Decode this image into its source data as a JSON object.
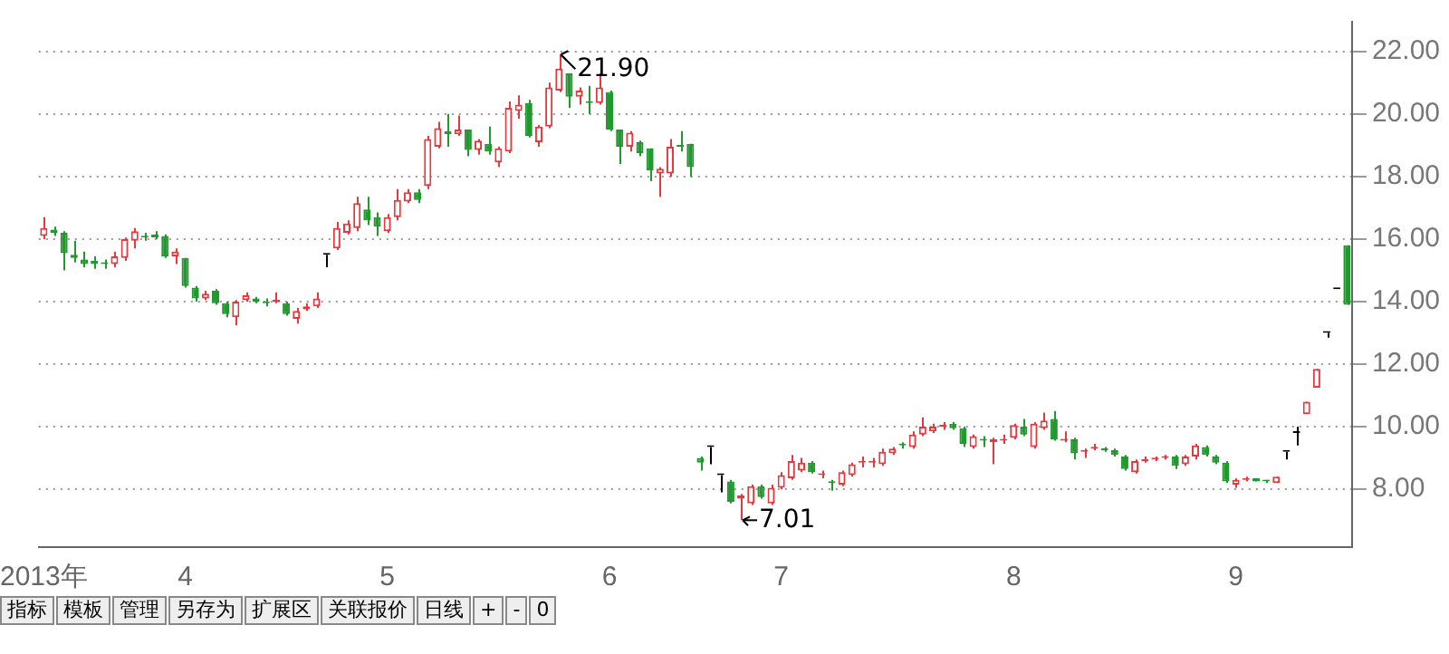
{
  "chart_data": {
    "type": "candlestick",
    "categories": [
      "2013年",
      null,
      null,
      null,
      null,
      null,
      null,
      null,
      null,
      null,
      null,
      null,
      null,
      null,
      "4",
      null,
      null,
      null,
      null,
      null,
      null,
      null,
      null,
      null,
      null,
      null,
      null,
      null,
      null,
      null,
      null,
      null,
      null,
      null,
      "5",
      null,
      null,
      null,
      null,
      null,
      null,
      null,
      null,
      null,
      null,
      null,
      null,
      null,
      null,
      null,
      null,
      null,
      null,
      null,
      null,
      null,
      "6",
      null,
      null,
      null,
      null,
      null,
      null,
      null,
      null,
      null,
      null,
      null,
      null,
      null,
      null,
      null,
      null,
      "7",
      null,
      null,
      null,
      null,
      null,
      null,
      null,
      null,
      null,
      null,
      null,
      null,
      null,
      null,
      null,
      null,
      null,
      null,
      null,
      null,
      null,
      null,
      "8",
      null,
      null,
      null,
      null,
      null,
      null,
      null,
      null,
      null,
      null,
      null,
      null,
      null,
      null,
      null,
      null,
      null,
      null,
      null,
      null,
      null,
      "9",
      null,
      null,
      null,
      null,
      null,
      null,
      null,
      null,
      null,
      null,
      null
    ],
    "ohlc": [
      [
        16.1,
        16.7,
        16.0,
        16.35
      ],
      [
        16.3,
        16.4,
        16.1,
        16.2
      ],
      [
        16.2,
        16.25,
        15.0,
        15.55
      ],
      [
        15.5,
        15.95,
        15.25,
        15.4
      ],
      [
        15.35,
        15.6,
        15.1,
        15.2
      ],
      [
        15.3,
        15.45,
        15.05,
        15.2
      ],
      [
        15.25,
        15.35,
        15.05,
        15.2
      ],
      [
        15.2,
        15.6,
        15.1,
        15.45
      ],
      [
        15.4,
        16.05,
        15.3,
        16.0
      ],
      [
        15.95,
        16.35,
        15.7,
        16.25
      ],
      [
        16.1,
        16.2,
        15.95,
        16.05
      ],
      [
        16.15,
        16.25,
        16.0,
        16.05
      ],
      [
        16.1,
        16.15,
        15.4,
        15.45
      ],
      [
        15.45,
        15.7,
        15.2,
        15.6
      ],
      [
        15.4,
        15.4,
        14.45,
        14.5
      ],
      [
        14.45,
        14.5,
        14.0,
        14.1
      ],
      [
        14.1,
        14.35,
        14.05,
        14.25
      ],
      [
        14.35,
        14.4,
        13.9,
        13.95
      ],
      [
        13.95,
        14.0,
        13.5,
        13.6
      ],
      [
        13.5,
        14.05,
        13.25,
        14.0
      ],
      [
        14.05,
        14.3,
        14.0,
        14.2
      ],
      [
        14.1,
        14.15,
        13.95,
        14.0
      ],
      [
        14.0,
        14.1,
        13.85,
        13.95
      ],
      [
        14.0,
        14.3,
        13.95,
        14.05
      ],
      [
        13.95,
        14.0,
        13.55,
        13.6
      ],
      [
        13.45,
        13.8,
        13.3,
        13.7
      ],
      [
        13.75,
        13.95,
        13.7,
        13.85
      ],
      [
        13.85,
        14.3,
        13.8,
        14.1
      ],
      [
        15.5,
        15.5,
        15.1,
        15.5
      ],
      [
        15.7,
        16.55,
        15.65,
        16.35
      ],
      [
        16.2,
        16.6,
        16.15,
        16.5
      ],
      [
        16.35,
        17.35,
        16.25,
        17.15
      ],
      [
        16.95,
        17.35,
        16.45,
        16.6
      ],
      [
        16.7,
        16.85,
        16.1,
        16.4
      ],
      [
        16.25,
        16.8,
        16.2,
        16.7
      ],
      [
        16.7,
        17.6,
        16.6,
        17.25
      ],
      [
        17.2,
        17.6,
        17.15,
        17.5
      ],
      [
        17.5,
        17.6,
        17.15,
        17.25
      ],
      [
        17.7,
        19.3,
        17.6,
        19.2
      ],
      [
        18.95,
        19.75,
        18.9,
        19.55
      ],
      [
        19.45,
        20.0,
        18.95,
        19.35
      ],
      [
        19.35,
        19.95,
        19.3,
        19.5
      ],
      [
        19.5,
        19.5,
        18.65,
        18.85
      ],
      [
        18.85,
        19.2,
        18.7,
        19.15
      ],
      [
        19.05,
        19.6,
        18.7,
        18.8
      ],
      [
        18.45,
        18.95,
        18.3,
        18.9
      ],
      [
        18.8,
        20.4,
        18.75,
        20.2
      ],
      [
        20.1,
        20.6,
        19.85,
        20.3
      ],
      [
        20.35,
        20.45,
        19.25,
        19.3
      ],
      [
        19.1,
        19.65,
        18.95,
        19.6
      ],
      [
        19.6,
        21.0,
        19.55,
        20.85
      ],
      [
        20.75,
        21.9,
        20.7,
        21.45
      ],
      [
        21.3,
        21.3,
        20.2,
        20.55
      ],
      [
        20.55,
        20.85,
        20.3,
        20.75
      ],
      [
        20.4,
        20.9,
        20.0,
        20.35
      ],
      [
        20.35,
        21.3,
        20.3,
        20.85
      ],
      [
        20.7,
        20.75,
        19.45,
        19.5
      ],
      [
        19.5,
        19.5,
        18.4,
        18.95
      ],
      [
        18.95,
        19.45,
        18.8,
        19.4
      ],
      [
        19.1,
        19.15,
        18.65,
        18.75
      ],
      [
        18.9,
        18.9,
        17.85,
        18.2
      ],
      [
        18.1,
        18.3,
        17.35,
        18.25
      ],
      [
        18.1,
        19.2,
        18.0,
        18.95
      ],
      [
        19.0,
        19.45,
        18.8,
        18.95
      ],
      [
        19.05,
        19.05,
        18.0,
        18.3
      ],
      [
        9.0,
        9.05,
        8.6,
        8.85
      ],
      [
        9.35,
        9.35,
        8.8,
        9.35
      ],
      [
        8.45,
        8.45,
        7.9,
        8.45
      ],
      [
        8.25,
        8.3,
        7.55,
        7.6
      ],
      [
        7.7,
        7.85,
        7.01,
        7.8
      ],
      [
        7.55,
        8.15,
        7.5,
        8.1
      ],
      [
        8.1,
        8.15,
        7.7,
        7.75
      ],
      [
        7.55,
        8.15,
        7.5,
        8.05
      ],
      [
        8.05,
        8.55,
        8.0,
        8.45
      ],
      [
        8.35,
        9.1,
        8.3,
        8.9
      ],
      [
        8.6,
        9.0,
        8.55,
        8.85
      ],
      [
        8.85,
        8.9,
        8.5,
        8.55
      ],
      [
        8.45,
        8.6,
        8.35,
        8.5
      ],
      [
        8.25,
        8.3,
        7.95,
        8.2
      ],
      [
        8.15,
        8.6,
        8.1,
        8.55
      ],
      [
        8.45,
        8.85,
        8.4,
        8.8
      ],
      [
        8.85,
        9.05,
        8.7,
        8.9
      ],
      [
        8.85,
        9.0,
        8.7,
        8.9
      ],
      [
        8.8,
        9.3,
        8.75,
        9.2
      ],
      [
        9.15,
        9.35,
        9.1,
        9.3
      ],
      [
        9.45,
        9.5,
        9.3,
        9.4
      ],
      [
        9.35,
        9.85,
        9.3,
        9.75
      ],
      [
        9.75,
        10.3,
        9.7,
        10.0
      ],
      [
        9.85,
        10.1,
        9.8,
        10.0
      ],
      [
        10.0,
        10.15,
        9.9,
        10.05
      ],
      [
        10.1,
        10.15,
        9.9,
        9.95
      ],
      [
        9.95,
        10.0,
        9.35,
        9.45
      ],
      [
        9.35,
        9.75,
        9.3,
        9.7
      ],
      [
        9.6,
        9.7,
        9.35,
        9.55
      ],
      [
        9.5,
        9.65,
        8.8,
        9.6
      ],
      [
        9.55,
        9.75,
        9.45,
        9.6
      ],
      [
        9.65,
        10.1,
        9.6,
        10.05
      ],
      [
        10.0,
        10.25,
        9.7,
        9.75
      ],
      [
        9.35,
        10.15,
        9.3,
        10.1
      ],
      [
        9.95,
        10.45,
        9.9,
        10.2
      ],
      [
        10.25,
        10.5,
        9.55,
        9.6
      ],
      [
        9.55,
        9.85,
        9.5,
        9.6
      ],
      [
        9.6,
        9.65,
        8.95,
        9.15
      ],
      [
        9.2,
        9.3,
        9.0,
        9.25
      ],
      [
        9.3,
        9.45,
        9.25,
        9.35
      ],
      [
        9.3,
        9.35,
        9.2,
        9.25
      ],
      [
        9.25,
        9.3,
        9.05,
        9.1
      ],
      [
        9.05,
        9.1,
        8.6,
        8.65
      ],
      [
        8.55,
        8.95,
        8.5,
        8.9
      ],
      [
        8.9,
        9.05,
        8.85,
        8.95
      ],
      [
        8.95,
        9.05,
        8.9,
        9.0
      ],
      [
        9.0,
        9.1,
        8.95,
        9.05
      ],
      [
        9.05,
        9.1,
        8.65,
        8.75
      ],
      [
        8.8,
        9.1,
        8.75,
        9.05
      ],
      [
        9.05,
        9.45,
        8.95,
        9.4
      ],
      [
        9.35,
        9.4,
        9.05,
        9.1
      ],
      [
        9.05,
        9.1,
        8.8,
        8.85
      ],
      [
        8.85,
        8.9,
        8.2,
        8.25
      ],
      [
        8.15,
        8.35,
        8.05,
        8.3
      ],
      [
        8.3,
        8.4,
        8.25,
        8.32
      ],
      [
        8.35,
        8.35,
        8.25,
        8.25
      ],
      [
        8.3,
        8.3,
        8.2,
        8.25
      ],
      [
        8.2,
        8.4,
        8.2,
        8.4
      ],
      [
        9.2,
        9.2,
        8.95,
        9.2
      ],
      [
        9.8,
        10.0,
        9.4,
        9.8
      ],
      [
        10.4,
        10.8,
        10.4,
        10.8
      ],
      [
        11.25,
        11.85,
        11.25,
        11.85
      ],
      [
        13.0,
        13.0,
        12.85,
        13.0
      ],
      [
        14.4,
        14.4,
        14.4,
        14.4
      ],
      [
        15.8,
        15.8,
        13.9,
        13.9
      ]
    ],
    "colors": [
      "#e8383d",
      "#22992e",
      "#22992e",
      "#22992e",
      "#22992e",
      "#22992e",
      "#22992e",
      "#e8383d",
      "#e8383d",
      "#e8383d",
      "#22992e",
      "#22992e",
      "#22992e",
      "#e8383d",
      "#22992e",
      "#22992e",
      "#e8383d",
      "#22992e",
      "#22992e",
      "#e8383d",
      "#e8383d",
      "#22992e",
      "#22992e",
      "#e8383d",
      "#22992e",
      "#e8383d",
      "#e8383d",
      "#e8383d",
      "#000000",
      "#e8383d",
      "#e8383d",
      "#e8383d",
      "#22992e",
      "#22992e",
      "#e8383d",
      "#e8383d",
      "#e8383d",
      "#22992e",
      "#e8383d",
      "#e8383d",
      "#22992e",
      "#e8383d",
      "#22992e",
      "#e8383d",
      "#22992e",
      "#e8383d",
      "#e8383d",
      "#e8383d",
      "#22992e",
      "#e8383d",
      "#e8383d",
      "#e8383d",
      "#22992e",
      "#e8383d",
      "#22992e",
      "#e8383d",
      "#22992e",
      "#22992e",
      "#e8383d",
      "#22992e",
      "#22992e",
      "#e8383d",
      "#e8383d",
      "#22992e",
      "#22992e",
      "#22992e",
      "#000000",
      "#000000",
      "#22992e",
      "#e8383d",
      "#e8383d",
      "#22992e",
      "#e8383d",
      "#e8383d",
      "#e8383d",
      "#e8383d",
      "#22992e",
      "#e8383d",
      "#22992e",
      "#e8383d",
      "#e8383d",
      "#e8383d",
      "#e8383d",
      "#e8383d",
      "#e8383d",
      "#22992e",
      "#e8383d",
      "#e8383d",
      "#e8383d",
      "#e8383d",
      "#22992e",
      "#22992e",
      "#e8383d",
      "#22992e",
      "#e8383d",
      "#e8383d",
      "#e8383d",
      "#22992e",
      "#e8383d",
      "#e8383d",
      "#22992e",
      "#e8383d",
      "#22992e",
      "#e8383d",
      "#e8383d",
      "#22992e",
      "#22992e",
      "#22992e",
      "#e8383d",
      "#e8383d",
      "#e8383d",
      "#e8383d",
      "#22992e",
      "#e8383d",
      "#e8383d",
      "#22992e",
      "#22992e",
      "#22992e",
      "#e8383d",
      "#e8383d",
      "#22992e",
      "#22992e",
      "#e8383d",
      "#000000",
      "#000000",
      "#e8383d",
      "#e8383d",
      "#000000",
      "#000000",
      "#22992e"
    ],
    "ylim": [
      6.15,
      22.95
    ],
    "yticks": [
      {
        "value": 8,
        "label": "8.00"
      },
      {
        "value": 10,
        "label": "10.00"
      },
      {
        "value": 12,
        "label": "12.00"
      },
      {
        "value": 14,
        "label": "14.00"
      },
      {
        "value": 16,
        "label": "16.00"
      },
      {
        "value": 18,
        "label": "18.00"
      },
      {
        "value": 20,
        "label": "20.00"
      },
      {
        "value": 22,
        "label": "22.00"
      }
    ],
    "grid": "y",
    "legend": false,
    "annotations": [
      "21.90",
      "7.01",
      "指标",
      "模板",
      "管理",
      "另存为",
      "扩展区",
      "关联报价",
      "日线",
      "+",
      "-",
      "0"
    ]
  }
}
